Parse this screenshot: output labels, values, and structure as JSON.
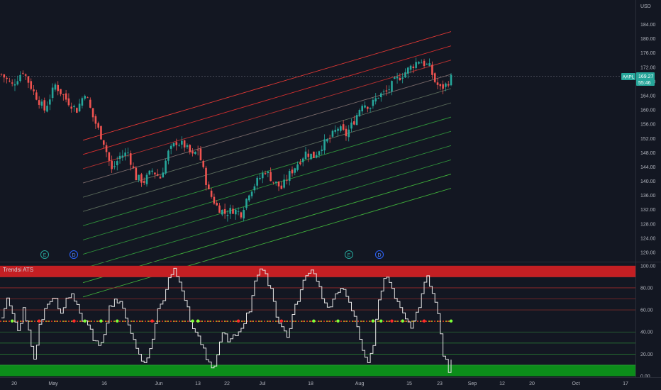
{
  "chart_data": [
    {
      "type": "candlestick",
      "symbol": "AAPL",
      "currency": "USD",
      "price_label": {
        "value": "169.27",
        "countdown": "55:46"
      },
      "y_ticks": [
        "184.00",
        "180.00",
        "176.00",
        "172.00",
        "168.00",
        "164.00",
        "160.00",
        "156.00",
        "152.00",
        "148.00",
        "144.00",
        "140.00",
        "136.00",
        "132.00",
        "128.00",
        "124.00",
        "120.00"
      ],
      "x_ticks": [
        "20",
        "May",
        "16",
        "Jun",
        "13",
        "22",
        "Jul",
        "18",
        "Aug",
        "15",
        "23",
        "Sep",
        "12",
        "20",
        "Oct",
        "17"
      ],
      "ylim": [
        118,
        186
      ],
      "earnings_markers": [
        "E",
        "D",
        "E",
        "D"
      ],
      "channel": {
        "start_price": 143.5,
        "end_price": 174.0,
        "step": 4.0,
        "offsets": [
          -9,
          -8,
          -7,
          -6,
          -5,
          -4,
          -3,
          -2,
          -1,
          0,
          1,
          2
        ]
      },
      "close_anchors": [
        [
          0,
          170
        ],
        [
          4,
          167
        ],
        [
          8,
          171
        ],
        [
          12,
          165
        ],
        [
          16,
          160
        ],
        [
          20,
          167
        ],
        [
          24,
          163
        ],
        [
          28,
          160
        ],
        [
          31,
          165
        ],
        [
          34,
          158
        ],
        [
          38,
          151
        ],
        [
          41,
          143
        ],
        [
          44,
          147
        ],
        [
          47,
          148
        ],
        [
          50,
          141
        ],
        [
          53,
          140
        ],
        [
          56,
          143
        ],
        [
          59,
          141
        ],
        [
          62,
          148
        ],
        [
          65,
          151
        ],
        [
          68,
          150
        ],
        [
          71,
          147
        ],
        [
          73,
          149
        ],
        [
          75,
          143
        ],
        [
          77,
          137
        ],
        [
          80,
          133
        ],
        [
          83,
          131
        ],
        [
          86,
          132
        ],
        [
          89,
          131
        ],
        [
          92,
          137
        ],
        [
          95,
          140
        ],
        [
          98,
          143
        ],
        [
          101,
          140
        ],
        [
          104,
          138
        ],
        [
          107,
          142
        ],
        [
          110,
          145
        ],
        [
          113,
          148
        ],
        [
          116,
          147
        ],
        [
          119,
          150
        ],
        [
          122,
          152
        ],
        [
          125,
          155
        ],
        [
          128,
          153
        ],
        [
          131,
          157
        ],
        [
          134,
          162
        ],
        [
          137,
          161
        ],
        [
          140,
          164
        ],
        [
          143,
          165
        ],
        [
          146,
          168
        ],
        [
          149,
          170
        ],
        [
          152,
          172
        ],
        [
          155,
          174
        ],
        [
          157,
          173
        ],
        [
          159,
          172
        ],
        [
          161,
          168
        ],
        [
          163,
          166
        ],
        [
          165,
          167
        ],
        [
          167,
          169
        ]
      ]
    },
    {
      "type": "line",
      "indicator": "Trendsi ATS",
      "y_ticks": [
        "100.00",
        "80.00",
        "60.00",
        "40.00",
        "20.00",
        "0.00"
      ],
      "ylim": [
        0,
        100
      ],
      "midline": 50,
      "zones": {
        "upper": [
          90,
          100
        ],
        "lower": [
          0,
          10
        ]
      },
      "anchors": [
        [
          0,
          55
        ],
        [
          2,
          70
        ],
        [
          4,
          55
        ],
        [
          6,
          40
        ],
        [
          8,
          60
        ],
        [
          10,
          40
        ],
        [
          12,
          15
        ],
        [
          14,
          45
        ],
        [
          16,
          60
        ],
        [
          18,
          70
        ],
        [
          20,
          68
        ],
        [
          22,
          55
        ],
        [
          24,
          70
        ],
        [
          26,
          75
        ],
        [
          28,
          65
        ],
        [
          30,
          50
        ],
        [
          32,
          45
        ],
        [
          34,
          35
        ],
        [
          36,
          25
        ],
        [
          38,
          40
        ],
        [
          40,
          62
        ],
        [
          42,
          70
        ],
        [
          44,
          65
        ],
        [
          46,
          55
        ],
        [
          48,
          40
        ],
        [
          50,
          25
        ],
        [
          52,
          15
        ],
        [
          54,
          15
        ],
        [
          56,
          35
        ],
        [
          58,
          60
        ],
        [
          60,
          70
        ],
        [
          62,
          90
        ],
        [
          64,
          97
        ],
        [
          66,
          88
        ],
        [
          68,
          70
        ],
        [
          70,
          50
        ],
        [
          72,
          40
        ],
        [
          74,
          30
        ],
        [
          76,
          15
        ],
        [
          78,
          5
        ],
        [
          80,
          18
        ],
        [
          82,
          42
        ],
        [
          84,
          30
        ],
        [
          86,
          35
        ],
        [
          88,
          40
        ],
        [
          90,
          50
        ],
        [
          92,
          60
        ],
        [
          94,
          88
        ],
        [
          96,
          97
        ],
        [
          98,
          90
        ],
        [
          100,
          80
        ],
        [
          102,
          55
        ],
        [
          104,
          45
        ],
        [
          106,
          35
        ],
        [
          108,
          55
        ],
        [
          110,
          70
        ],
        [
          112,
          85
        ],
        [
          114,
          96
        ],
        [
          116,
          95
        ],
        [
          118,
          80
        ],
        [
          120,
          65
        ],
        [
          122,
          60
        ],
        [
          124,
          75
        ],
        [
          126,
          82
        ],
        [
          128,
          70
        ],
        [
          130,
          60
        ],
        [
          132,
          45
        ],
        [
          134,
          25
        ],
        [
          136,
          10
        ],
        [
          138,
          30
        ],
        [
          140,
          70
        ],
        [
          142,
          90
        ],
        [
          144,
          85
        ],
        [
          146,
          70
        ],
        [
          148,
          60
        ],
        [
          150,
          50
        ],
        [
          152,
          45
        ],
        [
          154,
          55
        ],
        [
          156,
          75
        ],
        [
          158,
          90
        ],
        [
          160,
          78
        ],
        [
          162,
          55
        ],
        [
          164,
          20
        ],
        [
          166,
          5
        ],
        [
          168,
          20
        ],
        [
          170,
          30
        ]
      ]
    }
  ]
}
